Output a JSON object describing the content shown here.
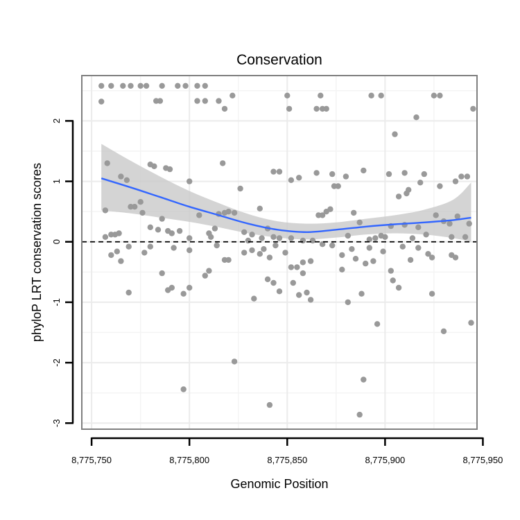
{
  "chart_data": {
    "type": "scatter",
    "title": "Conservation",
    "xlabel": "Genomic Position",
    "ylabel": "phyloP LRT conservation scores",
    "xlim": [
      8775745,
      8775947
    ],
    "ylim": [
      -3.1,
      2.75
    ],
    "x_ticks": [
      {
        "value": 8775750,
        "label": "8,775,750"
      },
      {
        "value": 8775800,
        "label": "8,775,800"
      },
      {
        "value": 8775850,
        "label": "8,775,850"
      },
      {
        "value": 8775900,
        "label": "8,775,900"
      },
      {
        "value": 8775950,
        "label": "8,775,950"
      }
    ],
    "y_ticks": [
      {
        "value": -3,
        "label": "-3"
      },
      {
        "value": -2,
        "label": "-2"
      },
      {
        "value": -1,
        "label": "-1"
      },
      {
        "value": 0,
        "label": "0"
      },
      {
        "value": 1,
        "label": "1"
      },
      {
        "value": 2,
        "label": "2"
      }
    ],
    "reference_line": {
      "y": 0,
      "style": "dashed",
      "color": "#000000"
    },
    "colors": {
      "points": "#999999",
      "smooth_line": "#3366FF",
      "ribbon": "#C8C8C8",
      "grid": "#EBEBEB",
      "border": "#7F7F7F"
    },
    "points": [
      [
        8775755,
        2.58
      ],
      [
        8775755,
        2.32
      ],
      [
        8775760,
        2.58
      ],
      [
        8775766,
        2.58
      ],
      [
        8775770,
        2.58
      ],
      [
        8775775,
        2.58
      ],
      [
        8775778,
        2.58
      ],
      [
        8775786,
        2.58
      ],
      [
        8775794,
        2.58
      ],
      [
        8775798,
        2.58
      ],
      [
        8775804,
        2.58
      ],
      [
        8775808,
        2.58
      ],
      [
        8775783,
        2.33
      ],
      [
        8775785,
        2.33
      ],
      [
        8775804,
        2.33
      ],
      [
        8775808,
        2.33
      ],
      [
        8775815,
        2.33
      ],
      [
        8775818,
        2.2
      ],
      [
        8775822,
        2.42
      ],
      [
        8775850,
        2.42
      ],
      [
        8775851,
        2.2
      ],
      [
        8775865,
        2.2
      ],
      [
        8775867,
        2.42
      ],
      [
        8775868,
        2.2
      ],
      [
        8775870,
        2.2
      ],
      [
        8775893,
        2.42
      ],
      [
        8775898,
        2.42
      ],
      [
        8775916,
        2.06
      ],
      [
        8775925,
        2.42
      ],
      [
        8775928,
        2.42
      ],
      [
        8775945,
        2.2
      ],
      [
        8775905,
        1.78
      ],
      [
        8775758,
        1.3
      ],
      [
        8775757,
        0.52
      ],
      [
        8775765,
        1.08
      ],
      [
        8775768,
        1.02
      ],
      [
        8775772,
        0.58
      ],
      [
        8775780,
        1.28
      ],
      [
        8775782,
        1.25
      ],
      [
        8775788,
        1.22
      ],
      [
        8775790,
        1.2
      ],
      [
        8775800,
        1.0
      ],
      [
        8775817,
        1.3
      ],
      [
        8775826,
        0.88
      ],
      [
        8775836,
        0.55
      ],
      [
        8775843,
        1.16
      ],
      [
        8775846,
        1.16
      ],
      [
        8775852,
        1.02
      ],
      [
        8775856,
        1.06
      ],
      [
        8775865,
        1.14
      ],
      [
        8775873,
        1.12
      ],
      [
        8775874,
        0.92
      ],
      [
        8775876,
        0.92
      ],
      [
        8775880,
        1.08
      ],
      [
        8775889,
        1.18
      ],
      [
        8775902,
        1.12
      ],
      [
        8775907,
        0.75
      ],
      [
        8775910,
        1.14
      ],
      [
        8775911,
        0.8
      ],
      [
        8775912,
        0.86
      ],
      [
        8775918,
        0.98
      ],
      [
        8775920,
        1.12
      ],
      [
        8775928,
        0.92
      ],
      [
        8775936,
        1.0
      ],
      [
        8775939,
        1.08
      ],
      [
        8775942,
        1.08
      ],
      [
        8775757,
        0.08
      ],
      [
        8775760,
        0.12
      ],
      [
        8775762,
        0.12
      ],
      [
        8775764,
        0.14
      ],
      [
        8775770,
        0.58
      ],
      [
        8775775,
        0.66
      ],
      [
        8775776,
        0.48
      ],
      [
        8775780,
        0.24
      ],
      [
        8775784,
        0.2
      ],
      [
        8775786,
        0.38
      ],
      [
        8775789,
        0.18
      ],
      [
        8775791,
        0.14
      ],
      [
        8775795,
        0.18
      ],
      [
        8775800,
        0.06
      ],
      [
        8775805,
        0.44
      ],
      [
        8775810,
        0.14
      ],
      [
        8775811,
        0.08
      ],
      [
        8775813,
        0.22
      ],
      [
        8775815,
        0.46
      ],
      [
        8775818,
        0.48
      ],
      [
        8775820,
        0.5
      ],
      [
        8775823,
        0.48
      ],
      [
        8775828,
        0.16
      ],
      [
        8775830,
        0.02
      ],
      [
        8775832,
        0.12
      ],
      [
        8775837,
        0.06
      ],
      [
        8775840,
        0.22
      ],
      [
        8775843,
        0.08
      ],
      [
        8775846,
        0.06
      ],
      [
        8775852,
        0.06
      ],
      [
        8775858,
        0.02
      ],
      [
        8775863,
        0.02
      ],
      [
        8775866,
        0.44
      ],
      [
        8775868,
        0.44
      ],
      [
        8775870,
        0.5
      ],
      [
        8775872,
        0.54
      ],
      [
        8775881,
        0.1
      ],
      [
        8775884,
        0.48
      ],
      [
        8775887,
        0.32
      ],
      [
        8775892,
        0.04
      ],
      [
        8775895,
        0.06
      ],
      [
        8775898,
        0.1
      ],
      [
        8775900,
        0.08
      ],
      [
        8775903,
        0.26
      ],
      [
        8775910,
        0.28
      ],
      [
        8775914,
        0.06
      ],
      [
        8775917,
        0.24
      ],
      [
        8775921,
        0.12
      ],
      [
        8775926,
        0.44
      ],
      [
        8775930,
        0.34
      ],
      [
        8775933,
        0.3
      ],
      [
        8775934,
        0.08
      ],
      [
        8775937,
        0.42
      ],
      [
        8775941,
        0.08
      ],
      [
        8775943,
        0.3
      ],
      [
        8775760,
        -0.22
      ],
      [
        8775763,
        -0.16
      ],
      [
        8775765,
        -0.32
      ],
      [
        8775769,
        -0.08
      ],
      [
        8775777,
        -0.18
      ],
      [
        8775780,
        -0.08
      ],
      [
        8775786,
        -0.52
      ],
      [
        8775792,
        -0.1
      ],
      [
        8775800,
        -0.14
      ],
      [
        8775810,
        -0.48
      ],
      [
        8775814,
        -0.06
      ],
      [
        8775818,
        -0.3
      ],
      [
        8775820,
        -0.3
      ],
      [
        8775828,
        -0.18
      ],
      [
        8775832,
        -0.14
      ],
      [
        8775836,
        -0.2
      ],
      [
        8775838,
        -0.12
      ],
      [
        8775841,
        -0.26
      ],
      [
        8775844,
        -0.06
      ],
      [
        8775849,
        -0.18
      ],
      [
        8775852,
        -0.42
      ],
      [
        8775855,
        -0.42
      ],
      [
        8775858,
        -0.34
      ],
      [
        8775862,
        -0.32
      ],
      [
        8775868,
        -0.04
      ],
      [
        8775873,
        -0.06
      ],
      [
        8775878,
        -0.22
      ],
      [
        8775878,
        -0.46
      ],
      [
        8775883,
        -0.12
      ],
      [
        8775885,
        -0.28
      ],
      [
        8775890,
        -0.36
      ],
      [
        8775892,
        -0.1
      ],
      [
        8775894,
        -0.32
      ],
      [
        8775899,
        -0.16
      ],
      [
        8775903,
        -0.48
      ],
      [
        8775909,
        -0.08
      ],
      [
        8775913,
        -0.3
      ],
      [
        8775917,
        -0.1
      ],
      [
        8775922,
        -0.2
      ],
      [
        8775924,
        -0.26
      ],
      [
        8775934,
        -0.22
      ],
      [
        8775936,
        -0.26
      ],
      [
        8775769,
        -0.84
      ],
      [
        8775789,
        -0.8
      ],
      [
        8775791,
        -0.76
      ],
      [
        8775797,
        -0.86
      ],
      [
        8775800,
        -0.76
      ],
      [
        8775808,
        -0.56
      ],
      [
        8775840,
        -0.62
      ],
      [
        8775843,
        -0.68
      ],
      [
        8775846,
        -0.82
      ],
      [
        8775853,
        -0.68
      ],
      [
        8775856,
        -0.88
      ],
      [
        8775858,
        -0.52
      ],
      [
        8775860,
        -0.84
      ],
      [
        8775862,
        -0.96
      ],
      [
        8775881,
        -1.0
      ],
      [
        8775888,
        -0.86
      ],
      [
        8775904,
        -0.64
      ],
      [
        8775907,
        -0.76
      ],
      [
        8775924,
        -0.86
      ],
      [
        8775833,
        -0.94
      ],
      [
        8775896,
        -1.36
      ],
      [
        8775930,
        -1.48
      ],
      [
        8775944,
        -1.34
      ],
      [
        8775823,
        -1.98
      ],
      [
        8775797,
        -2.44
      ],
      [
        8775841,
        -2.7
      ],
      [
        8775889,
        -2.28
      ],
      [
        8775887,
        -2.86
      ]
    ],
    "smooth": {
      "x": [
        8775755,
        8775770,
        8775785,
        8775800,
        8775815,
        8775830,
        8775845,
        8775860,
        8775875,
        8775890,
        8775905,
        8775920,
        8775935,
        8775944
      ],
      "y": [
        1.05,
        0.9,
        0.74,
        0.58,
        0.44,
        0.3,
        0.2,
        0.16,
        0.2,
        0.25,
        0.29,
        0.32,
        0.36,
        0.4
      ],
      "lower": [
        0.52,
        0.47,
        0.4,
        0.33,
        0.24,
        0.14,
        0.07,
        0.04,
        0.07,
        0.12,
        0.14,
        0.12,
        0.06,
        0.0
      ],
      "upper": [
        1.62,
        1.34,
        1.08,
        0.84,
        0.64,
        0.46,
        0.34,
        0.3,
        0.32,
        0.38,
        0.44,
        0.53,
        0.7,
        0.98
      ]
    }
  }
}
